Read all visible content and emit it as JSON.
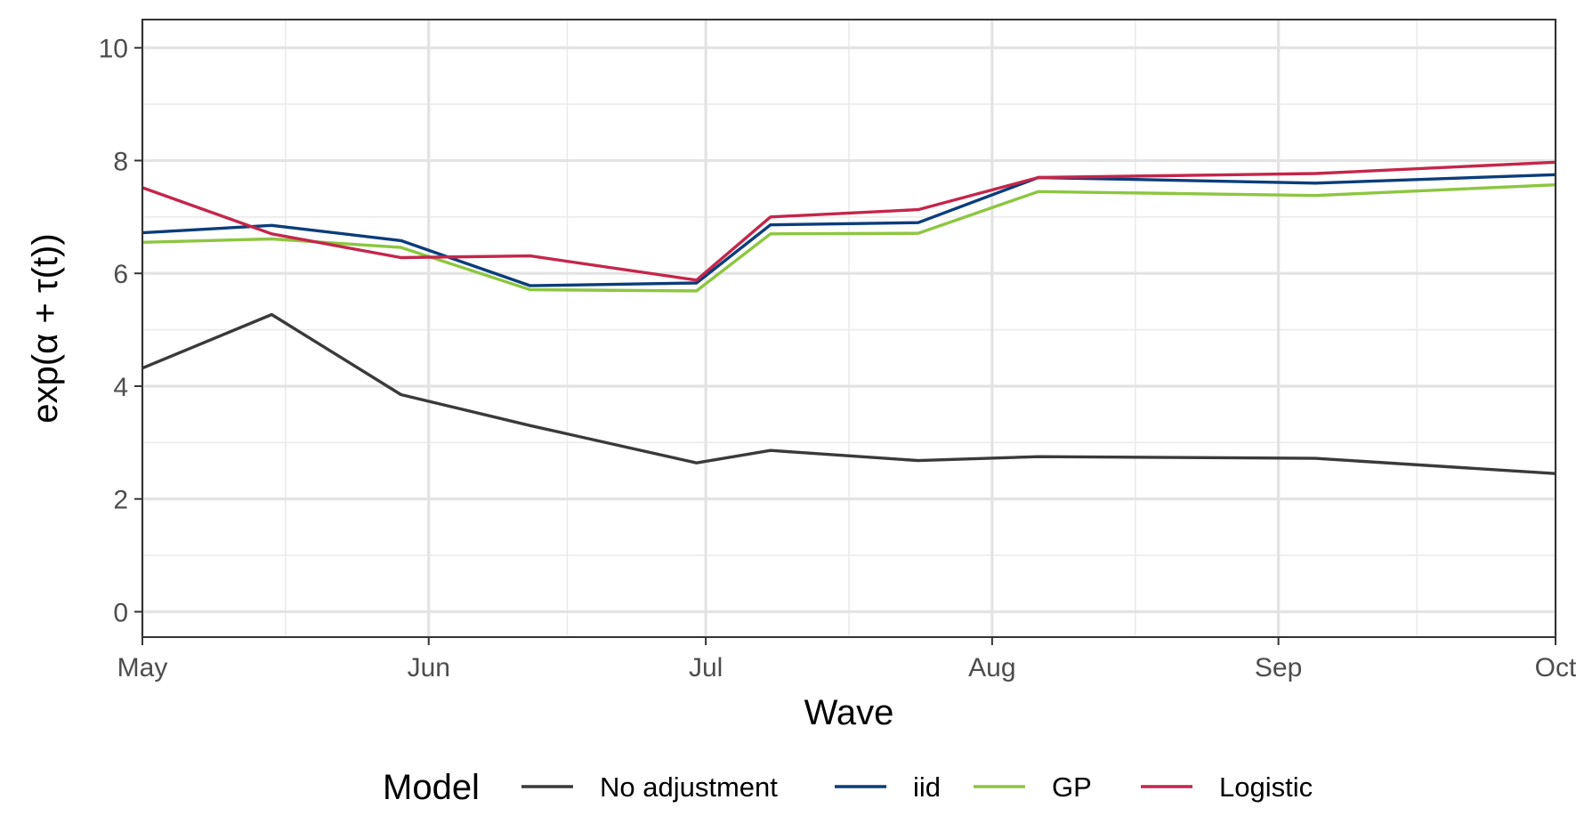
{
  "chart_data": {
    "type": "line",
    "xlabel": "Wave",
    "ylabel": "exp(α + τ(t))",
    "x_tick_labels": [
      "May",
      "Jun",
      "Jul",
      "Aug",
      "Sep",
      "Oct"
    ],
    "y_tick_labels": [
      "0",
      "2",
      "4",
      "6",
      "8",
      "10"
    ],
    "y_ticks": [
      0,
      2,
      4,
      6,
      8,
      10
    ],
    "ylim": [
      -0.45,
      10.5
    ],
    "xlim": [
      "2020-05-01",
      "2020-10-01"
    ],
    "grid": true,
    "legend": {
      "title": "Model",
      "position": "bottom",
      "entries": [
        "No adjustment",
        "iid",
        "GP",
        "Logistic"
      ]
    },
    "x": [
      "2020-05-01",
      "2020-05-15",
      "2020-05-29",
      "2020-06-12",
      "2020-06-30",
      "2020-07-08",
      "2020-07-24",
      "2020-08-06",
      "2020-09-05",
      "2020-10-01"
    ],
    "series": [
      {
        "name": "No adjustment",
        "color": "#3a3a3a",
        "values": [
          4.32,
          5.27,
          3.85,
          3.3,
          2.64,
          2.86,
          2.68,
          2.75,
          2.72,
          2.45
        ]
      },
      {
        "name": "iid",
        "color": "#0b3d7a",
        "values": [
          6.72,
          6.85,
          6.58,
          5.78,
          5.83,
          6.86,
          6.9,
          7.7,
          7.6,
          7.75
        ]
      },
      {
        "name": "GP",
        "color": "#8cc63f",
        "values": [
          6.55,
          6.61,
          6.46,
          5.71,
          5.69,
          6.7,
          6.71,
          7.45,
          7.38,
          7.57
        ]
      },
      {
        "name": "Logistic",
        "color": "#c4264b",
        "values": [
          7.52,
          6.7,
          6.28,
          6.31,
          5.88,
          7.0,
          7.13,
          7.7,
          7.77,
          7.97
        ]
      }
    ]
  }
}
